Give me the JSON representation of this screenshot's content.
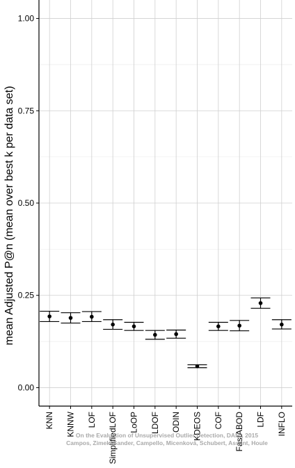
{
  "chart_data": {
    "type": "errorbar",
    "ylabel": "mean Adjusted P@n (mean over best k per data set)",
    "xlabel": "",
    "ylim": [
      -0.05,
      1.05
    ],
    "yticks": [
      "0.00",
      "0.25",
      "0.50",
      "0.75",
      "1.00"
    ],
    "ytick_values": [
      0,
      0.25,
      0.5,
      0.75,
      1.0
    ],
    "grid": true,
    "categories": [
      "KNN",
      "KNNW",
      "LOF",
      "SimplifiedLOF",
      "LoOP",
      "LDOF",
      "ODIN",
      "KDEOS",
      "COF",
      "FastABOD",
      "LDF",
      "INFLO"
    ],
    "series": [
      {
        "mean": [
          0.193,
          0.189,
          0.192,
          0.171,
          0.166,
          0.143,
          0.145,
          0.058,
          0.166,
          0.168,
          0.229,
          0.171
        ],
        "lower": [
          0.179,
          0.175,
          0.179,
          0.158,
          0.155,
          0.131,
          0.134,
          0.054,
          0.155,
          0.154,
          0.215,
          0.159
        ],
        "upper": [
          0.207,
          0.203,
          0.206,
          0.184,
          0.177,
          0.155,
          0.156,
          0.062,
          0.177,
          0.182,
          0.243,
          0.184
        ]
      }
    ],
    "watermark": [
      "On the Evaluation of Unsupervised Outlier Detection, DAMI, 2015",
      "Campos, Zimek, Sander, Campello, Micenková, Schubert, Assent, Houle"
    ]
  }
}
